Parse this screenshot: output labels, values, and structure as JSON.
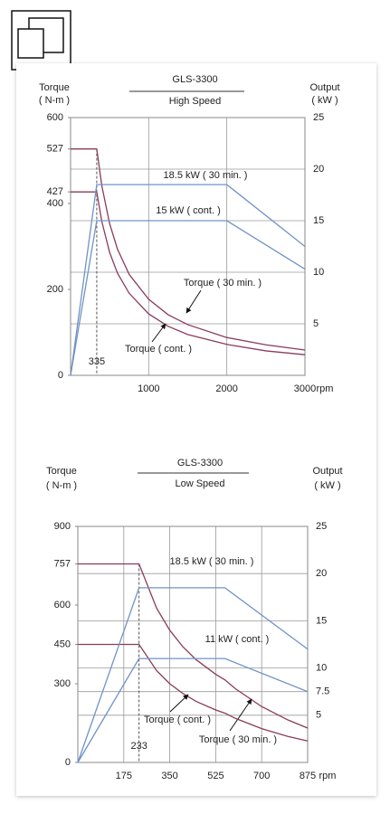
{
  "chart_data": [
    {
      "type": "line",
      "title": "GLS-3300",
      "subtitle": "High Speed",
      "ylabel": [
        "Torque",
        "( N-m )"
      ],
      "y2label": [
        "Output",
        "( kW )"
      ],
      "xlabel": "rpm",
      "xlim": [
        0,
        3000
      ],
      "xticks": [
        1000,
        2000,
        3000
      ],
      "dashed_xticks": [
        335
      ],
      "ylim": [
        0,
        600
      ],
      "yticks": [
        0,
        200,
        400,
        427,
        527,
        600
      ],
      "y2lim": [
        0,
        25
      ],
      "y2ticks": [
        5,
        10,
        15,
        20,
        25
      ],
      "grid": true,
      "series": [
        {
          "name": "Torque ( 30 min. )",
          "color": "#8a3b5c",
          "x": [
            0,
            335,
            400,
            500,
            600,
            750,
            1000,
            1250,
            1500,
            2000,
            2500,
            3000
          ],
          "values": [
            527,
            527,
            441,
            353,
            294,
            235,
            177,
            141,
            118,
            88,
            71,
            59
          ]
        },
        {
          "name": "Torque ( cont. )",
          "color": "#8a3b5c",
          "x": [
            0,
            335,
            400,
            500,
            600,
            750,
            1000,
            1250,
            1500,
            2000,
            2500,
            3000
          ],
          "values": [
            427,
            427,
            358,
            286,
            238,
            191,
            143,
            114,
            95,
            72,
            57,
            48
          ]
        },
        {
          "name": "18.5 kW ( 30 min. )",
          "color": "#6f93c6",
          "axis": "y2",
          "x": [
            0,
            335,
            2000,
            3000
          ],
          "values": [
            0,
            18.5,
            18.5,
            12.5
          ]
        },
        {
          "name": "15 kW ( cont. )",
          "color": "#6f93c6",
          "axis": "y2",
          "x": [
            0,
            335,
            2000,
            3000
          ],
          "values": [
            0,
            15,
            15,
            10.3
          ]
        }
      ]
    },
    {
      "type": "line",
      "title": "GLS-3300",
      "subtitle": "Low Speed",
      "ylabel": [
        "Torque",
        "( N-m )"
      ],
      "y2label": [
        "Output",
        "( kW )"
      ],
      "xlabel": "rpm",
      "xlim": [
        0,
        875
      ],
      "xticks": [
        175,
        350,
        525,
        700,
        875
      ],
      "dashed_xticks": [
        233
      ],
      "ylim": [
        0,
        900
      ],
      "yticks": [
        0,
        300,
        450,
        600,
        757,
        900
      ],
      "y2lim": [
        0,
        25
      ],
      "y2ticks": [
        5,
        7.5,
        10,
        15,
        20,
        25
      ],
      "grid": true,
      "series": [
        {
          "name": "Torque ( 30 min. )",
          "color": "#8a3b5c",
          "x": [
            0,
            233,
            300,
            350,
            400,
            450,
            525,
            560,
            600,
            700,
            800,
            875
          ],
          "values": [
            757,
            757,
            588,
            504,
            441,
            392,
            336,
            315,
            281,
            213,
            162,
            131
          ]
        },
        {
          "name": "Torque ( cont. )",
          "color": "#8a3b5c",
          "x": [
            0,
            233,
            300,
            350,
            400,
            450,
            525,
            560,
            600,
            700,
            800,
            875
          ],
          "values": [
            450,
            450,
            350,
            300,
            263,
            233,
            200,
            188,
            168,
            129,
            99,
            82
          ]
        },
        {
          "name": "18.5 kW ( 30 min. )",
          "color": "#6f93c6",
          "axis": "y2",
          "x": [
            0,
            233,
            560,
            875
          ],
          "values": [
            0,
            18.5,
            18.5,
            12
          ]
        },
        {
          "name": "11 kW ( cont. )",
          "color": "#6f93c6",
          "axis": "y2",
          "x": [
            0,
            233,
            560,
            875
          ],
          "values": [
            0,
            11,
            11,
            7.5
          ]
        }
      ]
    }
  ]
}
